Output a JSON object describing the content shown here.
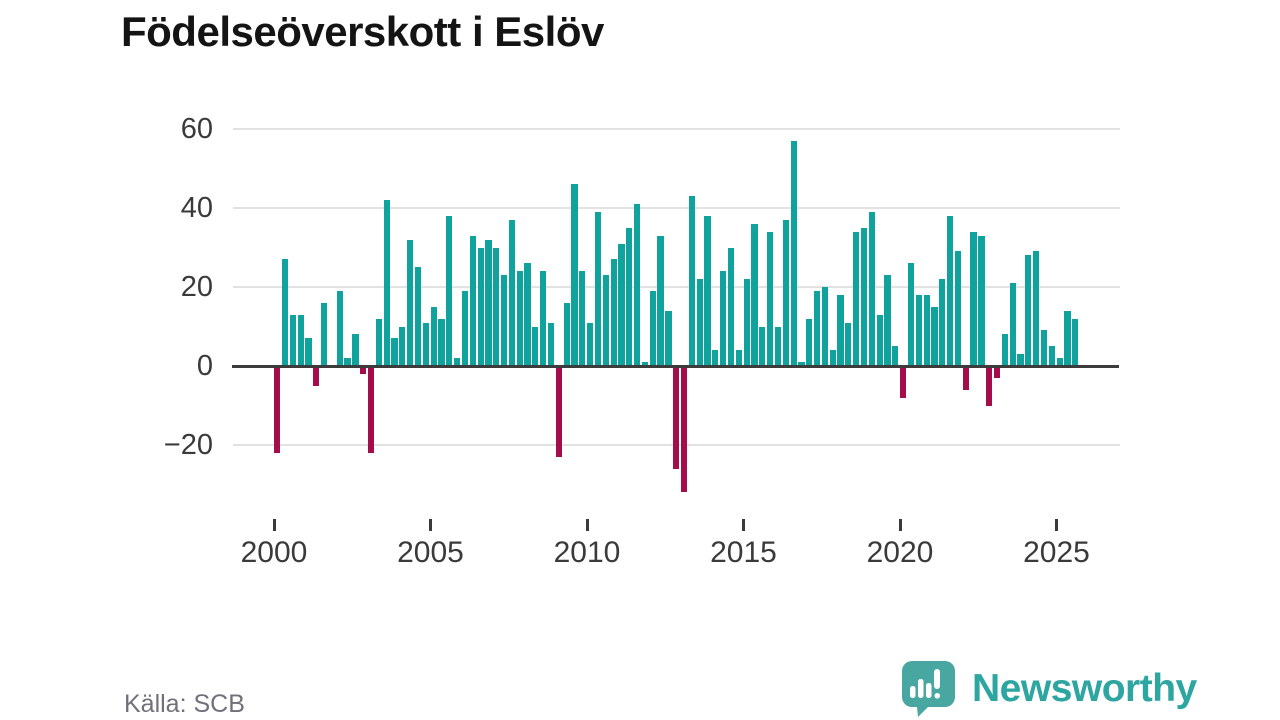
{
  "title": "Födelseöverskott i Eslöv",
  "source": "Källa: SCB",
  "branding": {
    "name": "Newsworthy"
  },
  "chart_data": {
    "type": "bar",
    "title": "Födelseöverskott i Eslöv",
    "frequency": "quarterly",
    "start_period": "2000-Q1",
    "series": [
      {
        "year": 2000,
        "quarters": [
          -22,
          27,
          13,
          13
        ]
      },
      {
        "year": 2001,
        "quarters": [
          7,
          -5,
          16,
          0
        ]
      },
      {
        "year": 2002,
        "quarters": [
          19,
          2,
          8,
          -2
        ]
      },
      {
        "year": 2003,
        "quarters": [
          -22,
          12,
          42,
          7
        ]
      },
      {
        "year": 2004,
        "quarters": [
          10,
          32,
          25,
          11
        ]
      },
      {
        "year": 2005,
        "quarters": [
          15,
          12,
          38,
          2
        ]
      },
      {
        "year": 2006,
        "quarters": [
          19,
          33,
          30,
          32
        ]
      },
      {
        "year": 2007,
        "quarters": [
          30,
          23,
          37,
          24
        ]
      },
      {
        "year": 2008,
        "quarters": [
          26,
          10,
          24,
          11
        ]
      },
      {
        "year": 2009,
        "quarters": [
          -23,
          16,
          46,
          24
        ]
      },
      {
        "year": 2010,
        "quarters": [
          11,
          39,
          23,
          27
        ]
      },
      {
        "year": 2011,
        "quarters": [
          31,
          35,
          41,
          1
        ]
      },
      {
        "year": 2012,
        "quarters": [
          19,
          33,
          14,
          -26
        ]
      },
      {
        "year": 2013,
        "quarters": [
          -32,
          43,
          22,
          38
        ]
      },
      {
        "year": 2014,
        "quarters": [
          4,
          24,
          30,
          4
        ]
      },
      {
        "year": 2015,
        "quarters": [
          22,
          36,
          10,
          34
        ]
      },
      {
        "year": 2016,
        "quarters": [
          10,
          37,
          57,
          1
        ]
      },
      {
        "year": 2017,
        "quarters": [
          12,
          19,
          20,
          4
        ]
      },
      {
        "year": 2018,
        "quarters": [
          18,
          11,
          34,
          35
        ]
      },
      {
        "year": 2019,
        "quarters": [
          39,
          13,
          23,
          5
        ]
      },
      {
        "year": 2020,
        "quarters": [
          -8,
          26,
          18,
          18
        ]
      },
      {
        "year": 2021,
        "quarters": [
          15,
          22,
          38,
          29
        ]
      },
      {
        "year": 2022,
        "quarters": [
          -6,
          34,
          33,
          -10
        ]
      },
      {
        "year": 2023,
        "quarters": [
          -3,
          8,
          21,
          3
        ]
      },
      {
        "year": 2024,
        "quarters": [
          28,
          29,
          9,
          5
        ]
      },
      {
        "year": 2025,
        "quarters": [
          2,
          14,
          12
        ]
      }
    ],
    "yticks": [
      60,
      40,
      20,
      0,
      -20
    ],
    "ytick_labels": [
      "60",
      "40",
      "20",
      "0",
      "−20"
    ],
    "xticks": [
      2000,
      2005,
      2010,
      2015,
      2020,
      2025
    ],
    "ylim": [
      -35,
      62
    ],
    "grid": "horizontal",
    "legend": "none",
    "positive_color": "#10a29c",
    "negative_color": "#a30d49"
  }
}
